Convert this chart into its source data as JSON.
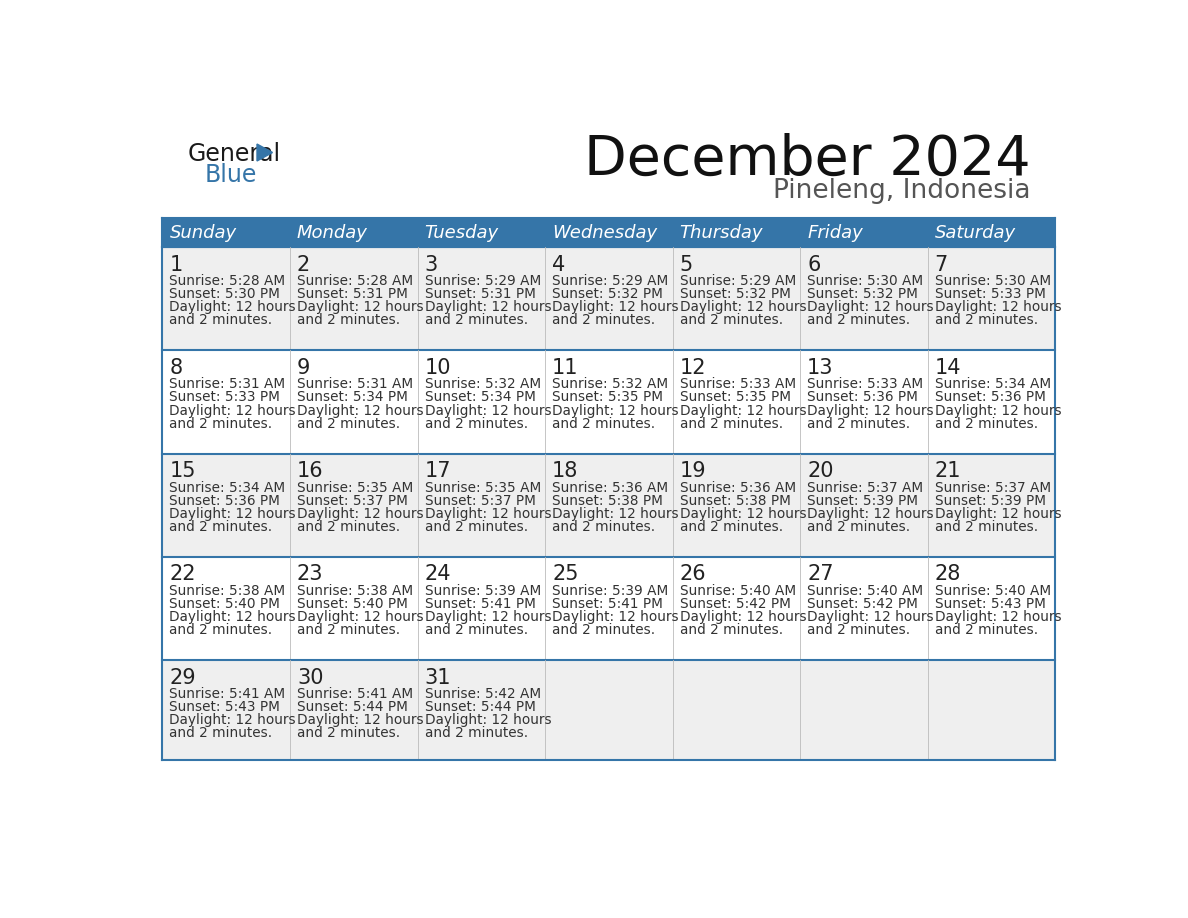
{
  "title": "December 2024",
  "subtitle": "Pineleng, Indonesia",
  "header_bg_color": "#3575a8",
  "header_text_color": "#ffffff",
  "day_names": [
    "Sunday",
    "Monday",
    "Tuesday",
    "Wednesday",
    "Thursday",
    "Friday",
    "Saturday"
  ],
  "row_bg_odd": "#efefef",
  "row_bg_even": "#ffffff",
  "border_color": "#3575a8",
  "day_num_color": "#222222",
  "cell_text_color": "#333333",
  "calendar": [
    [
      {
        "day": 1,
        "sunrise": "5:28 AM",
        "sunset": "5:30 PM"
      },
      {
        "day": 2,
        "sunrise": "5:28 AM",
        "sunset": "5:31 PM"
      },
      {
        "day": 3,
        "sunrise": "5:29 AM",
        "sunset": "5:31 PM"
      },
      {
        "day": 4,
        "sunrise": "5:29 AM",
        "sunset": "5:32 PM"
      },
      {
        "day": 5,
        "sunrise": "5:29 AM",
        "sunset": "5:32 PM"
      },
      {
        "day": 6,
        "sunrise": "5:30 AM",
        "sunset": "5:32 PM"
      },
      {
        "day": 7,
        "sunrise": "5:30 AM",
        "sunset": "5:33 PM"
      }
    ],
    [
      {
        "day": 8,
        "sunrise": "5:31 AM",
        "sunset": "5:33 PM"
      },
      {
        "day": 9,
        "sunrise": "5:31 AM",
        "sunset": "5:34 PM"
      },
      {
        "day": 10,
        "sunrise": "5:32 AM",
        "sunset": "5:34 PM"
      },
      {
        "day": 11,
        "sunrise": "5:32 AM",
        "sunset": "5:35 PM"
      },
      {
        "day": 12,
        "sunrise": "5:33 AM",
        "sunset": "5:35 PM"
      },
      {
        "day": 13,
        "sunrise": "5:33 AM",
        "sunset": "5:36 PM"
      },
      {
        "day": 14,
        "sunrise": "5:34 AM",
        "sunset": "5:36 PM"
      }
    ],
    [
      {
        "day": 15,
        "sunrise": "5:34 AM",
        "sunset": "5:36 PM"
      },
      {
        "day": 16,
        "sunrise": "5:35 AM",
        "sunset": "5:37 PM"
      },
      {
        "day": 17,
        "sunrise": "5:35 AM",
        "sunset": "5:37 PM"
      },
      {
        "day": 18,
        "sunrise": "5:36 AM",
        "sunset": "5:38 PM"
      },
      {
        "day": 19,
        "sunrise": "5:36 AM",
        "sunset": "5:38 PM"
      },
      {
        "day": 20,
        "sunrise": "5:37 AM",
        "sunset": "5:39 PM"
      },
      {
        "day": 21,
        "sunrise": "5:37 AM",
        "sunset": "5:39 PM"
      }
    ],
    [
      {
        "day": 22,
        "sunrise": "5:38 AM",
        "sunset": "5:40 PM"
      },
      {
        "day": 23,
        "sunrise": "5:38 AM",
        "sunset": "5:40 PM"
      },
      {
        "day": 24,
        "sunrise": "5:39 AM",
        "sunset": "5:41 PM"
      },
      {
        "day": 25,
        "sunrise": "5:39 AM",
        "sunset": "5:41 PM"
      },
      {
        "day": 26,
        "sunrise": "5:40 AM",
        "sunset": "5:42 PM"
      },
      {
        "day": 27,
        "sunrise": "5:40 AM",
        "sunset": "5:42 PM"
      },
      {
        "day": 28,
        "sunrise": "5:40 AM",
        "sunset": "5:43 PM"
      }
    ],
    [
      {
        "day": 29,
        "sunrise": "5:41 AM",
        "sunset": "5:43 PM"
      },
      {
        "day": 30,
        "sunrise": "5:41 AM",
        "sunset": "5:44 PM"
      },
      {
        "day": 31,
        "sunrise": "5:42 AM",
        "sunset": "5:44 PM"
      },
      null,
      null,
      null,
      null
    ]
  ],
  "logo_general_color": "#1a1a1a",
  "logo_blue_color": "#3575a8",
  "logo_triangle_color": "#3575a8",
  "fig_width": 11.88,
  "fig_height": 9.18,
  "dpi": 100
}
